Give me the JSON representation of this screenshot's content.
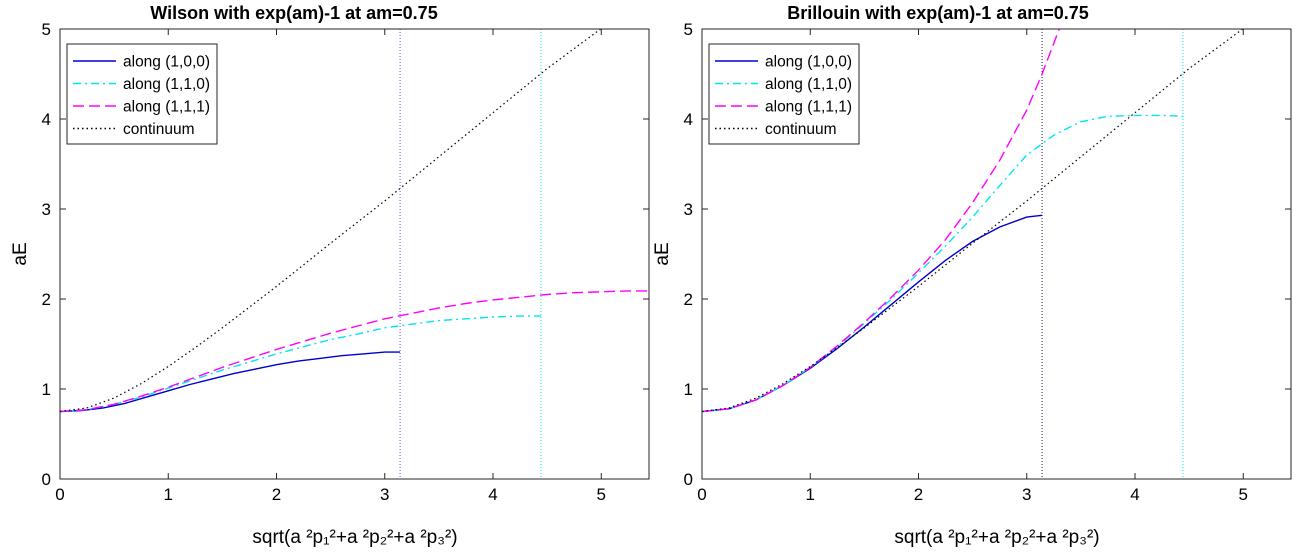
{
  "chart_data": [
    {
      "type": "line",
      "title": "Wilson with exp(am)-1 at am=0.75",
      "xlabel": "sqrt(a ²p₁²+a ²p₂²+a ²p₃²)",
      "ylabel": "aE",
      "xlim": [
        0,
        5.441
      ],
      "ylim": [
        0,
        5
      ],
      "xticks": [
        "0",
        "1",
        "2",
        "3",
        "4",
        "5"
      ],
      "yticks": [
        "0",
        "1",
        "2",
        "3",
        "4",
        "5"
      ],
      "grid": false,
      "legend_position": "top-left",
      "vlines": [
        {
          "x": 3.1416,
          "color": "#6a5acd"
        },
        {
          "x": 4.4429,
          "color": "#00e5ee"
        }
      ],
      "series": [
        {
          "name": "along (1,0,0)",
          "color": "#0000cd",
          "style": "solid",
          "x": [
            0,
            0.2,
            0.4,
            0.6,
            0.8,
            1.0,
            1.2,
            1.4,
            1.6,
            1.8,
            2.0,
            2.2,
            2.4,
            2.6,
            2.8,
            3.0,
            3.1416
          ],
          "y": [
            0.75,
            0.76,
            0.79,
            0.84,
            0.91,
            0.98,
            1.05,
            1.11,
            1.17,
            1.22,
            1.27,
            1.31,
            1.34,
            1.37,
            1.39,
            1.41,
            1.41
          ]
        },
        {
          "name": "along (1,1,0)",
          "color": "#00e5ee",
          "style": "dashdot",
          "x": [
            0,
            0.25,
            0.5,
            0.75,
            1.0,
            1.25,
            1.5,
            1.75,
            2.0,
            2.25,
            2.5,
            2.75,
            3.0,
            3.25,
            3.5,
            3.75,
            4.0,
            4.25,
            4.4429
          ],
          "y": [
            0.75,
            0.77,
            0.83,
            0.91,
            1.01,
            1.11,
            1.21,
            1.3,
            1.39,
            1.47,
            1.55,
            1.61,
            1.68,
            1.72,
            1.76,
            1.78,
            1.8,
            1.81,
            1.81
          ]
        },
        {
          "name": "along (1,1,1)",
          "color": "#ff00ff",
          "style": "dashed",
          "x": [
            0,
            0.25,
            0.5,
            0.75,
            1.0,
            1.25,
            1.5,
            1.75,
            2.0,
            2.25,
            2.5,
            2.75,
            3.0,
            3.25,
            3.5,
            3.75,
            4.0,
            4.25,
            4.5,
            4.75,
            5.0,
            5.25,
            5.441
          ],
          "y": [
            0.75,
            0.77,
            0.83,
            0.92,
            1.02,
            1.13,
            1.24,
            1.34,
            1.44,
            1.53,
            1.62,
            1.7,
            1.78,
            1.84,
            1.9,
            1.95,
            1.99,
            2.02,
            2.05,
            2.07,
            2.08,
            2.09,
            2.09
          ]
        },
        {
          "name": "continuum",
          "color": "#000000",
          "style": "dotted",
          "x": [
            0,
            0.25,
            0.5,
            0.75,
            1.0,
            1.25,
            1.5,
            1.75,
            2.0,
            2.5,
            3.0,
            3.5,
            4.0,
            4.5,
            4.9944
          ],
          "y": [
            0.75,
            0.79,
            0.9,
            1.06,
            1.25,
            1.46,
            1.68,
            1.91,
            2.14,
            2.62,
            3.09,
            3.58,
            4.07,
            4.56,
            5.0
          ]
        }
      ]
    },
    {
      "type": "line",
      "title": "Brillouin with exp(am)-1 at am=0.75",
      "xlabel": "sqrt(a ²p₁²+a ²p₂²+a ²p₃²)",
      "ylabel": "aE",
      "xlim": [
        0,
        5.441
      ],
      "ylim": [
        0,
        5
      ],
      "xticks": [
        "0",
        "1",
        "2",
        "3",
        "4",
        "5"
      ],
      "yticks": [
        "0",
        "1",
        "2",
        "3",
        "4",
        "5"
      ],
      "grid": false,
      "legend_position": "top-left",
      "vlines": [
        {
          "x": 3.1416,
          "color": "#1a1a40"
        },
        {
          "x": 4.4429,
          "color": "#00e5ee"
        }
      ],
      "series": [
        {
          "name": "along (1,0,0)",
          "color": "#0000cd",
          "style": "solid",
          "x": [
            0,
            0.25,
            0.5,
            0.75,
            1.0,
            1.25,
            1.5,
            1.75,
            2.0,
            2.25,
            2.5,
            2.75,
            3.0,
            3.1416
          ],
          "y": [
            0.75,
            0.78,
            0.88,
            1.04,
            1.23,
            1.45,
            1.69,
            1.94,
            2.19,
            2.43,
            2.64,
            2.8,
            2.91,
            2.93
          ]
        },
        {
          "name": "along (1,1,0)",
          "color": "#00e5ee",
          "style": "dashdot",
          "x": [
            0,
            0.25,
            0.5,
            0.75,
            1.0,
            1.25,
            1.5,
            1.75,
            2.0,
            2.25,
            2.5,
            2.75,
            3.0,
            3.25,
            3.5,
            3.75,
            4.0,
            4.25,
            4.4429
          ],
          "y": [
            0.75,
            0.78,
            0.88,
            1.04,
            1.24,
            1.47,
            1.73,
            2.0,
            2.29,
            2.59,
            2.91,
            3.26,
            3.6,
            3.82,
            3.97,
            4.03,
            4.04,
            4.04,
            4.03
          ]
        },
        {
          "name": "along (1,1,1)",
          "color": "#ff00ff",
          "style": "dashed",
          "x": [
            0,
            0.25,
            0.5,
            0.75,
            1.0,
            1.25,
            1.5,
            1.75,
            2.0,
            2.25,
            2.5,
            2.75,
            3.0,
            3.1416,
            3.3
          ],
          "y": [
            0.75,
            0.78,
            0.88,
            1.04,
            1.24,
            1.48,
            1.74,
            2.02,
            2.32,
            2.66,
            3.07,
            3.54,
            4.1,
            4.5,
            5.0
          ]
        },
        {
          "name": "continuum",
          "color": "#000000",
          "style": "dotted",
          "x": [
            0,
            0.25,
            0.5,
            0.75,
            1.0,
            1.25,
            1.5,
            1.75,
            2.0,
            2.5,
            3.0,
            3.5,
            4.0,
            4.5,
            4.9944
          ],
          "y": [
            0.75,
            0.79,
            0.9,
            1.06,
            1.25,
            1.46,
            1.68,
            1.91,
            2.14,
            2.62,
            3.09,
            3.58,
            4.07,
            4.56,
            5.0
          ]
        }
      ]
    }
  ]
}
